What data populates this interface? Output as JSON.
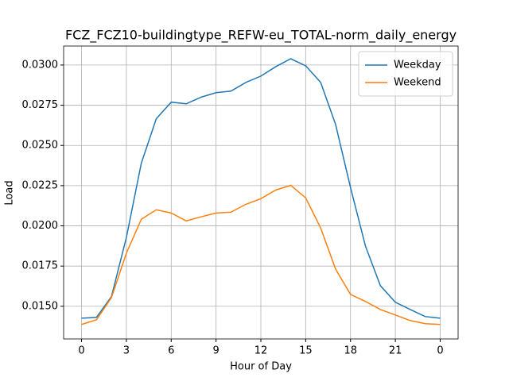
{
  "chart_data": {
    "type": "line",
    "title": "FCZ_FCZ10-buildingtype_REFW-eu_TOTAL-norm_daily_energy",
    "x_label": "Hour of Day",
    "y_label": "Load",
    "x": [
      0,
      1,
      2,
      3,
      4,
      5,
      6,
      7,
      8,
      9,
      10,
      11,
      12,
      13,
      14,
      15,
      16,
      17,
      18,
      19,
      20,
      21,
      22,
      23,
      24
    ],
    "series": [
      {
        "name": "Weekday",
        "color": "#1f77b4",
        "values": [
          0.01426,
          0.01431,
          0.0156,
          0.01928,
          0.0239,
          0.02666,
          0.02769,
          0.02759,
          0.028,
          0.02828,
          0.02838,
          0.02892,
          0.02931,
          0.0299,
          0.03039,
          0.02995,
          0.02892,
          0.02631,
          0.02238,
          0.01874,
          0.01628,
          0.01525,
          0.0148,
          0.01436,
          0.01426
        ]
      },
      {
        "name": "Weekend",
        "color": "#ff7f0e",
        "values": [
          0.01387,
          0.01416,
          0.01554,
          0.0183,
          0.02041,
          0.021,
          0.0208,
          0.02031,
          0.02056,
          0.0208,
          0.02085,
          0.02134,
          0.02169,
          0.02223,
          0.02252,
          0.02174,
          0.01987,
          0.01731,
          0.01574,
          0.0153,
          0.0148,
          0.01446,
          0.01411,
          0.01392,
          0.01387
        ]
      }
    ],
    "xlim": [
      -1.2,
      25.2
    ],
    "xticks": [
      0,
      3,
      6,
      9,
      12,
      15,
      18,
      21,
      {
        "value": 24,
        "label": "0"
      }
    ],
    "ylim": [
      0.01297,
      0.03118
    ],
    "yticks": [
      {
        "value": 0.015,
        "label": "0.0150"
      },
      {
        "value": 0.0175,
        "label": "0.0175"
      },
      {
        "value": 0.02,
        "label": "0.0200"
      },
      {
        "value": 0.0225,
        "label": "0.0225"
      },
      {
        "value": 0.025,
        "label": "0.0250"
      },
      {
        "value": 0.0275,
        "label": "0.0275"
      },
      {
        "value": 0.03,
        "label": "0.0300"
      }
    ],
    "grid": true,
    "legend": "upper right"
  }
}
